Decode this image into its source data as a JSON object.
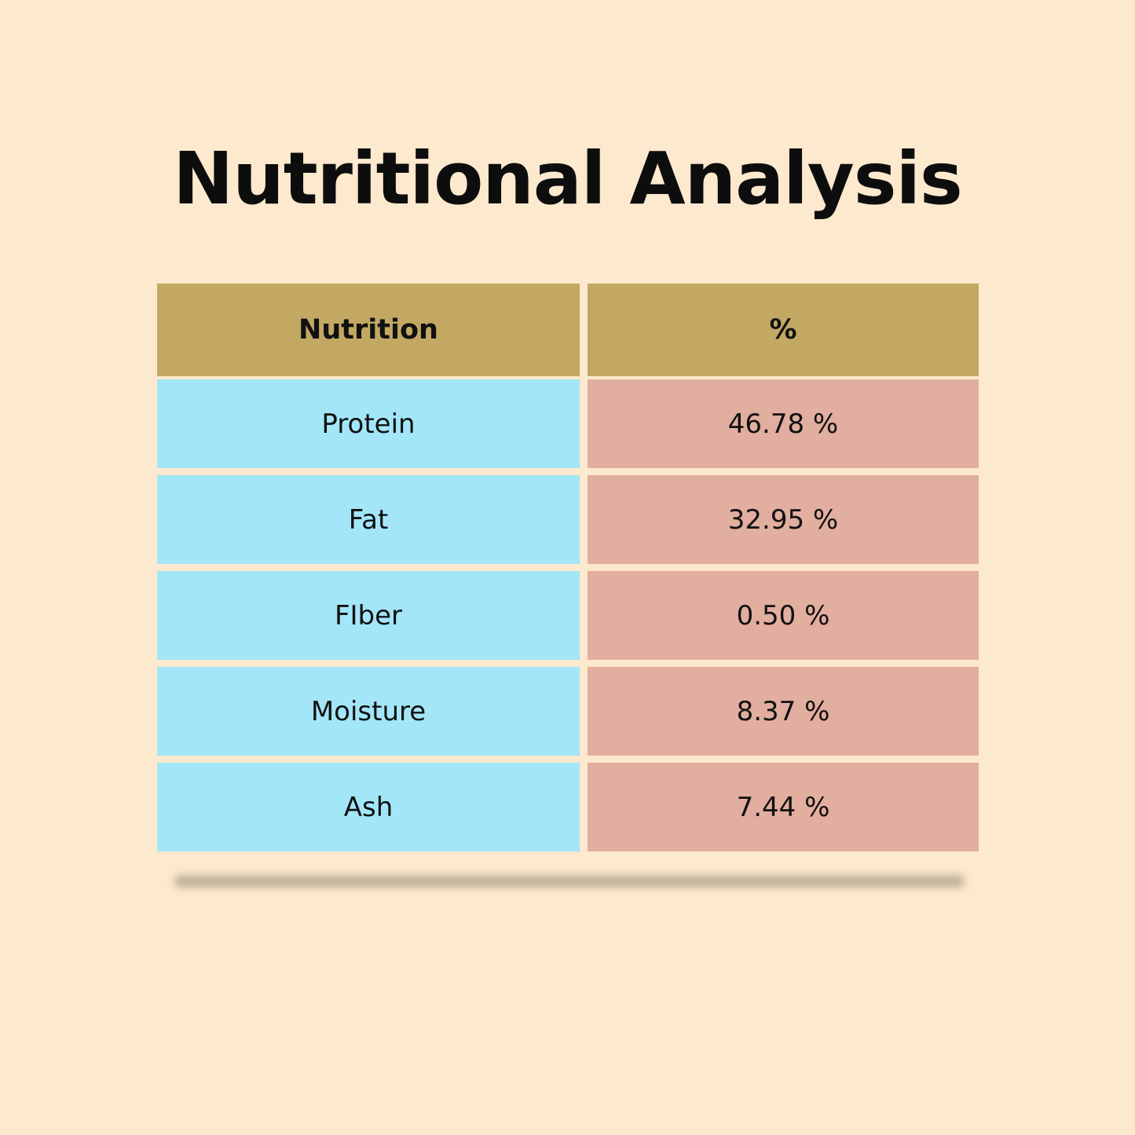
{
  "title": "Nutritional Analysis",
  "table": {
    "headers": [
      "Nutrition",
      "%"
    ],
    "rows": [
      {
        "nutrient": "Protein",
        "value": "46.78 %"
      },
      {
        "nutrient": "Fat",
        "value": "32.95 %"
      },
      {
        "nutrient": "FIber",
        "value": "0.50 %"
      },
      {
        "nutrient": "Moisture",
        "value": "8.37 %"
      },
      {
        "nutrient": "Ash",
        "value": "7.44 %"
      }
    ]
  },
  "colors": {
    "background": "#fde9cd",
    "header": "#c2a862",
    "nutrient_column": "#a3e6f8",
    "value_column": "#e2ae9f",
    "text": "#111111"
  }
}
